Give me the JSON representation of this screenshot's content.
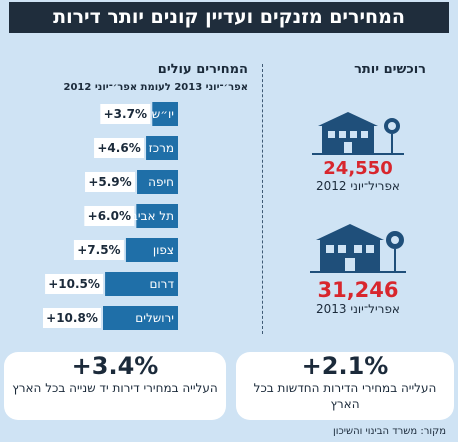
{
  "header": {
    "title": "המחירים מזנקים ועדיין קונים יותר דירות"
  },
  "right_panel": {
    "heading": "רוכשים יותר",
    "blocks": [
      {
        "value": "24,550",
        "period": "אפריל־יוני 2012"
      },
      {
        "value": "31,246",
        "period": "אפריל־יוני 2013"
      }
    ]
  },
  "left_panel": {
    "heading": "המחירים עולים",
    "subheading": "אפר׳־יוני 2013 לעומת אפר׳־יוני 2012"
  },
  "chart_data": {
    "type": "bar",
    "orientation": "horizontal",
    "title": "המחירים עולים",
    "subtitle": "אפר׳־יוני 2013 לעומת אפר׳־יוני 2012",
    "categories": [
      "יו״ש",
      "מרכז",
      "חיפה",
      "תל אביב",
      "צפון",
      "דרום",
      "ירושלים"
    ],
    "values": [
      3.7,
      4.6,
      5.9,
      6.0,
      7.5,
      10.5,
      10.8
    ],
    "data_labels": [
      "+3.7%",
      "+4.6%",
      "+5.9%",
      "+6.0%",
      "+7.5%",
      "+10.5%",
      "+10.8%"
    ],
    "xlim": [
      0,
      10.8
    ],
    "grid": false,
    "colors": {
      "bar": "#1f6fa8",
      "label_box": "#ffffff"
    }
  },
  "bottom": {
    "left": {
      "pct": "+3.4%",
      "desc": "העלייה במחירי דירות יד שנייה בכל הארץ"
    },
    "right": {
      "pct": "+2.1%",
      "desc": "העלייה במחירי הדירות החדשות בכל הארץ"
    }
  },
  "source": "מקור: משרד הבינוי והשיכון",
  "icons": {
    "house": "house-with-tree-icon"
  },
  "colors": {
    "background": "#cfe3f4",
    "title_bar": "#1f2d3c",
    "accent_red": "#d8262d",
    "house": "#1f4f7a"
  }
}
